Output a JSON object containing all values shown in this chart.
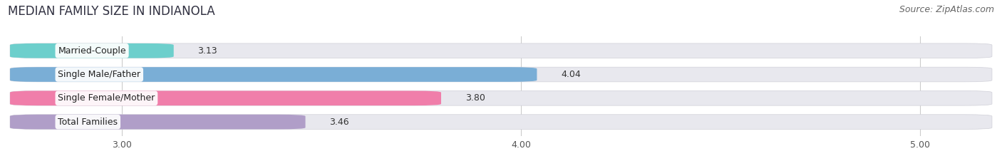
{
  "title": "MEDIAN FAMILY SIZE IN INDIANOLA",
  "source": "Source: ZipAtlas.com",
  "categories": [
    "Married-Couple",
    "Single Male/Father",
    "Single Female/Mother",
    "Total Families"
  ],
  "values": [
    3.13,
    4.04,
    3.8,
    3.46
  ],
  "bar_colors": [
    "#6dcfcc",
    "#7aaed6",
    "#f07eaa",
    "#b09ec8"
  ],
  "xlim_min": 2.72,
  "xlim_max": 5.18,
  "xticks": [
    3.0,
    4.0,
    5.0
  ],
  "xtick_labels": [
    "3.00",
    "4.00",
    "5.00"
  ],
  "background_color": "#ffffff",
  "bar_bg_color": "#e8e8ee",
  "title_fontsize": 12,
  "source_fontsize": 9,
  "label_fontsize": 9,
  "value_fontsize": 9,
  "tick_fontsize": 9,
  "bar_height": 0.62,
  "bar_gap": 0.08
}
